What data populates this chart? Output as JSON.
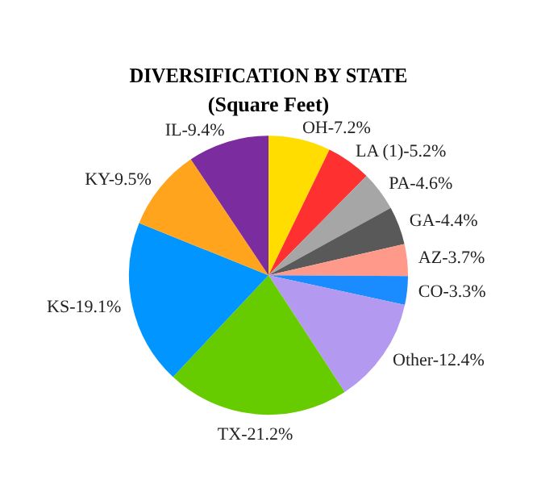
{
  "chart_data": {
    "type": "pie",
    "title": "DIVERSIFICATION BY STATE",
    "subtitle": "(Square Feet)",
    "categories": [
      "OH-7.2%",
      "LA (1)-5.2%",
      "PA-4.6%",
      "GA-4.4%",
      "AZ-3.7%",
      "CO-3.3%",
      "Other-12.4%",
      "TX-21.2%",
      "KS-19.1%",
      "KY-9.5%",
      "IL-9.4%"
    ],
    "values": [
      7.2,
      5.2,
      4.6,
      4.4,
      3.7,
      3.3,
      12.4,
      21.2,
      19.1,
      9.5,
      9.4
    ],
    "colors": [
      "#ffdd00",
      "#ff3030",
      "#a6a6a6",
      "#595959",
      "#ff9a8a",
      "#1a8cff",
      "#b39af0",
      "#66cc00",
      "#0095ff",
      "#ffa41c",
      "#7b2c9e"
    ],
    "legend": false
  }
}
